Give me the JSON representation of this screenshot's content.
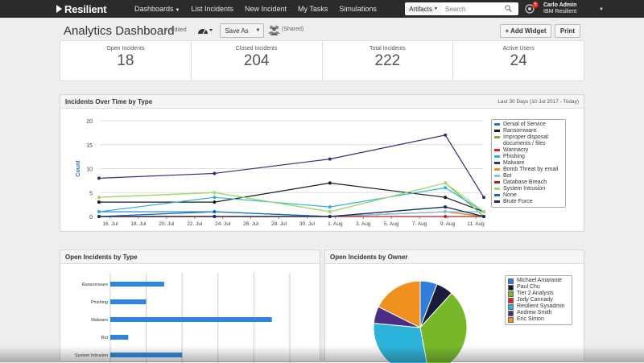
{
  "nav": {
    "logo": "Resilient",
    "items": [
      {
        "label": "Dashboards",
        "caret": true
      },
      {
        "label": "List Incidents",
        "caret": false
      },
      {
        "label": "New Incident",
        "caret": false
      },
      {
        "label": "My Tasks",
        "caret": false
      },
      {
        "label": "Simulations",
        "caret": false
      }
    ],
    "artifacts_label": "Artifacts",
    "search_placeholder": "Search",
    "notification_count": "6",
    "user_name": "Carlo Admin",
    "user_org": "IBM Resilient"
  },
  "header": {
    "title": "Analytics Dashboard",
    "edited": "– Edited",
    "save_as": "Save As",
    "shared": "(Shared)",
    "add_widget": "+ Add Widget",
    "print": "Print"
  },
  "stats": [
    {
      "label": "Open Incidents",
      "value": "18"
    },
    {
      "label": "Closed Incidents",
      "value": "204"
    },
    {
      "label": "Total Incidents",
      "value": "222"
    },
    {
      "label": "Active Users",
      "value": "24"
    }
  ],
  "panels": {
    "time_title": "Incidents Over Time by Type",
    "time_range": "Last 30 Days (10 Jul 2017 - Today)",
    "type_title": "Open Incidents by Type",
    "owner_title": "Open Incidents by Owner"
  },
  "chart_data": [
    {
      "type": "line",
      "title": "Incidents Over Time by Type",
      "ylabel": "Count",
      "ylim": [
        0,
        20
      ],
      "yticks": [
        0,
        5,
        10,
        15,
        20
      ],
      "x": [
        "13. Jul",
        "16. Jul",
        "19. Jul",
        "22. Jul",
        "25. Jul",
        "28. Jul",
        "31. Jul",
        "3. Aug",
        "6. Aug",
        "9. Aug",
        "12. Aug"
      ],
      "xtick_labels": [
        "16. Jul",
        "18. Jul",
        "20. Jul",
        "22. Jul",
        "24. Jul",
        "26. Jul",
        "28. Jul",
        "30. Jul",
        "1. Aug",
        "3. Aug",
        "5. Aug",
        "7. Aug",
        "9. Aug",
        "11. Aug"
      ],
      "legend_position": "right",
      "series": [
        {
          "name": "Denial of Service",
          "color": "#1f78d1",
          "values": [
            1,
            null,
            null,
            1,
            null,
            null,
            0,
            null,
            null,
            1,
            1
          ]
        },
        {
          "name": "Ransomware",
          "color": "#1a1a1a",
          "values": [
            3,
            null,
            null,
            3,
            null,
            null,
            7,
            null,
            null,
            4,
            1
          ]
        },
        {
          "name": "Improper disposal: documents / files",
          "color": "#76b82a",
          "values": [
            4,
            null,
            null,
            5,
            null,
            null,
            1,
            null,
            null,
            7,
            0
          ]
        },
        {
          "name": "Wannacry",
          "color": "#d9251c",
          "values": [
            0,
            null,
            null,
            0,
            null,
            null,
            0,
            null,
            null,
            1,
            0
          ]
        },
        {
          "name": "Phishing",
          "color": "#2bb3d9",
          "values": [
            1,
            null,
            null,
            4,
            null,
            null,
            2,
            null,
            null,
            6,
            1
          ]
        },
        {
          "name": "Malware",
          "color": "#2e2e7a",
          "values": [
            8,
            null,
            null,
            9,
            null,
            null,
            12,
            null,
            null,
            17,
            4
          ]
        },
        {
          "name": "Bomb Threat by email",
          "color": "#f0901e",
          "values": [
            0,
            null,
            null,
            0,
            null,
            null,
            0,
            null,
            null,
            1,
            0
          ]
        },
        {
          "name": "Bot",
          "color": "#7ec3e8",
          "values": [
            0,
            null,
            null,
            1,
            null,
            null,
            0,
            null,
            null,
            1,
            1
          ]
        },
        {
          "name": "Database Breach",
          "color": "#b22222",
          "values": [
            0,
            null,
            null,
            0,
            null,
            null,
            0,
            null,
            null,
            0,
            0
          ]
        },
        {
          "name": "System Intrusion",
          "color": "#a8d86e",
          "values": [
            4,
            null,
            null,
            5,
            null,
            null,
            1,
            null,
            null,
            7,
            1
          ]
        },
        {
          "name": "None",
          "color": "#0d6fb8",
          "values": [
            0,
            null,
            null,
            1,
            null,
            null,
            0,
            null,
            null,
            2,
            0
          ]
        },
        {
          "name": "Brute Force",
          "color": "#1f2a5e",
          "values": [
            0,
            null,
            null,
            0,
            null,
            null,
            0,
            null,
            null,
            2,
            0
          ]
        }
      ]
    },
    {
      "type": "bar",
      "orientation": "horizontal",
      "title": "Open Incidents by Type",
      "categories": [
        "Ransomware",
        "Phishing",
        "Malware",
        "Bot",
        "System Intrusion"
      ],
      "values": [
        3,
        2,
        9,
        1,
        4
      ],
      "xlim": [
        0,
        10
      ],
      "color": "#2f86d9"
    },
    {
      "type": "pie",
      "title": "Open Incidents by Owner",
      "labels": [
        "Michael Amarante",
        "Paul Chu",
        "Tier 2 Analysts",
        "Jody Cannady",
        "Resilient Sysadmin",
        "Andrew Smith",
        "Eric Simon"
      ],
      "values": [
        1,
        1,
        6,
        0,
        5,
        1,
        3
      ],
      "colors": [
        "#2f7ed8",
        "#1b1b3a",
        "#76b82a",
        "#d9251c",
        "#2bb3d9",
        "#4b2e83",
        "#f0901e"
      ],
      "legend_position": "right"
    }
  ]
}
